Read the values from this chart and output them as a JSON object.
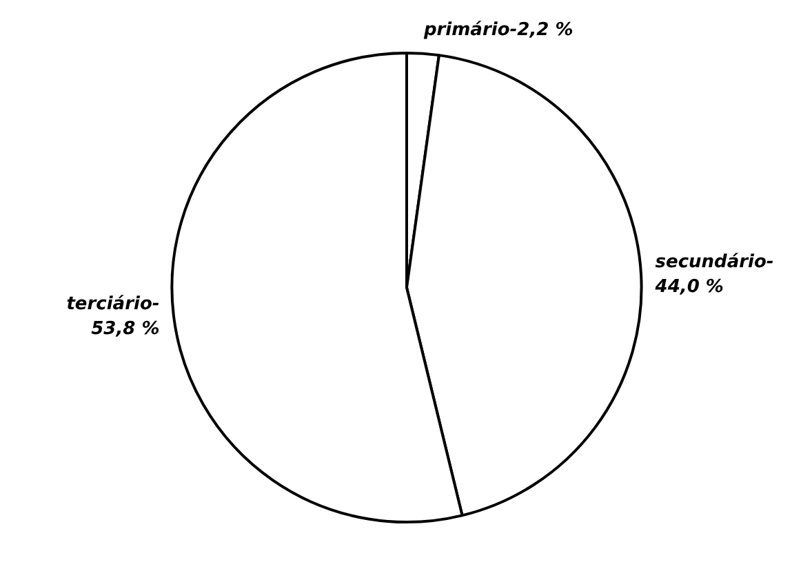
{
  "chart_data": {
    "type": "pie",
    "categories": [
      "primário-",
      "secundário-",
      "terciário-"
    ],
    "values": [
      2.2,
      44.0,
      53.8
    ],
    "value_labels": [
      "2,2 %",
      "44,0 %",
      "53,8 %"
    ],
    "colors": [
      "#ffffff",
      "#ffffff",
      "#ffffff"
    ]
  }
}
